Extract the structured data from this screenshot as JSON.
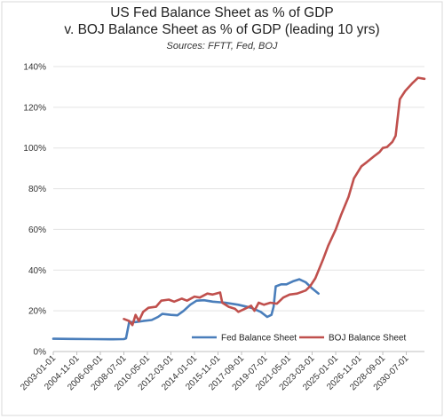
{
  "chart_data": {
    "type": "line",
    "title": "US Fed Balance Sheet as % of GDP",
    "subtitle": "v. BOJ Balance Sheet as % of GDP (leading 10 yrs)",
    "source": "Sources: FFTT, Fed, BOJ",
    "xlabel": "",
    "ylabel": "",
    "ylim": [
      0,
      140
    ],
    "yticks": [
      "0%",
      "20%",
      "40%",
      "60%",
      "80%",
      "100%",
      "120%",
      "140%"
    ],
    "xlim": [
      "2003-01-01",
      "2031-12-01"
    ],
    "xticks": [
      "2003-01-01",
      "2004-11-01",
      "2006-09-01",
      "2008-07-01",
      "2010-05-01",
      "2012-03-01",
      "2014-01-01",
      "2015-11-01",
      "2017-09-01",
      "2019-07-01",
      "2021-05-01",
      "2023-03-01",
      "2025-01-01",
      "2026-11-01",
      "2028-09-01",
      "2030-07-01"
    ],
    "grid": true,
    "legend_position": "bottom-center",
    "series": [
      {
        "name": "Fed Balance Sheet",
        "color": "#4a7ebb",
        "points": [
          [
            "2003-01-01",
            6.3
          ],
          [
            "2004-06-01",
            6.2
          ],
          [
            "2006-01-01",
            6.1
          ],
          [
            "2007-06-01",
            6.0
          ],
          [
            "2008-07-01",
            6.1
          ],
          [
            "2008-09-01",
            6.5
          ],
          [
            "2008-12-01",
            14.5
          ],
          [
            "2009-06-01",
            14.5
          ],
          [
            "2010-01-01",
            15.0
          ],
          [
            "2010-09-01",
            15.5
          ],
          [
            "2011-03-01",
            17.0
          ],
          [
            "2011-07-01",
            18.5
          ],
          [
            "2012-03-01",
            18.0
          ],
          [
            "2012-09-01",
            17.8
          ],
          [
            "2013-03-01",
            20.0
          ],
          [
            "2013-09-01",
            23.0
          ],
          [
            "2014-03-01",
            25.0
          ],
          [
            "2014-10-01",
            25.2
          ],
          [
            "2015-06-01",
            24.5
          ],
          [
            "2016-06-01",
            24.0
          ],
          [
            "2017-06-01",
            23.0
          ],
          [
            "2018-06-01",
            21.5
          ],
          [
            "2019-03-01",
            19.5
          ],
          [
            "2019-09-01",
            17.0
          ],
          [
            "2020-01-01",
            18.0
          ],
          [
            "2020-03-01",
            22.0
          ],
          [
            "2020-05-01",
            32.0
          ],
          [
            "2020-10-01",
            33.0
          ],
          [
            "2021-03-01",
            33.0
          ],
          [
            "2021-09-01",
            34.5
          ],
          [
            "2022-03-01",
            35.5
          ],
          [
            "2022-09-01",
            34.0
          ],
          [
            "2023-03-01",
            31.0
          ],
          [
            "2023-09-01",
            28.5
          ]
        ]
      },
      {
        "name": "BOJ Balance Sheet",
        "color": "#c0504d",
        "points": [
          [
            "2008-07-01",
            16.0
          ],
          [
            "2008-12-01",
            15.0
          ],
          [
            "2009-03-01",
            13.0
          ],
          [
            "2009-06-01",
            18.0
          ],
          [
            "2009-09-01",
            15.0
          ],
          [
            "2010-01-01",
            19.5
          ],
          [
            "2010-06-01",
            21.5
          ],
          [
            "2011-01-01",
            22.0
          ],
          [
            "2011-06-01",
            25.0
          ],
          [
            "2012-01-01",
            25.5
          ],
          [
            "2012-06-01",
            24.5
          ],
          [
            "2013-01-01",
            26.0
          ],
          [
            "2013-06-01",
            25.0
          ],
          [
            "2014-01-01",
            27.0
          ],
          [
            "2014-06-01",
            26.5
          ],
          [
            "2015-01-01",
            28.5
          ],
          [
            "2015-06-01",
            28.0
          ],
          [
            "2016-01-01",
            29.0
          ],
          [
            "2016-03-01",
            24.0
          ],
          [
            "2016-09-01",
            22.0
          ],
          [
            "2017-03-01",
            21.0
          ],
          [
            "2017-06-01",
            19.5
          ],
          [
            "2017-12-01",
            21.0
          ],
          [
            "2018-06-01",
            22.5
          ],
          [
            "2018-09-01",
            20.0
          ],
          [
            "2019-01-01",
            24.0
          ],
          [
            "2019-06-01",
            23.0
          ],
          [
            "2019-12-01",
            24.0
          ],
          [
            "2020-06-01",
            23.5
          ],
          [
            "2020-12-01",
            26.5
          ],
          [
            "2021-06-01",
            28.0
          ],
          [
            "2022-01-01",
            28.5
          ],
          [
            "2022-09-01",
            30.0
          ],
          [
            "2023-01-01",
            32.0
          ],
          [
            "2023-06-01",
            36.0
          ],
          [
            "2024-01-01",
            45.0
          ],
          [
            "2024-06-01",
            52.0
          ],
          [
            "2025-01-01",
            60.0
          ],
          [
            "2025-06-01",
            67.0
          ],
          [
            "2026-01-01",
            76.0
          ],
          [
            "2026-06-01",
            85.0
          ],
          [
            "2027-01-01",
            91.0
          ],
          [
            "2027-06-01",
            93.0
          ],
          [
            "2028-01-01",
            96.0
          ],
          [
            "2028-06-01",
            98.0
          ],
          [
            "2028-09-01",
            100.0
          ],
          [
            "2029-01-01",
            100.5
          ],
          [
            "2029-06-01",
            103.0
          ],
          [
            "2029-09-01",
            106.0
          ],
          [
            "2030-01-01",
            124.0
          ],
          [
            "2030-06-01",
            128.0
          ],
          [
            "2031-01-01",
            132.0
          ],
          [
            "2031-06-01",
            134.5
          ],
          [
            "2031-12-01",
            134.0
          ]
        ]
      }
    ]
  }
}
